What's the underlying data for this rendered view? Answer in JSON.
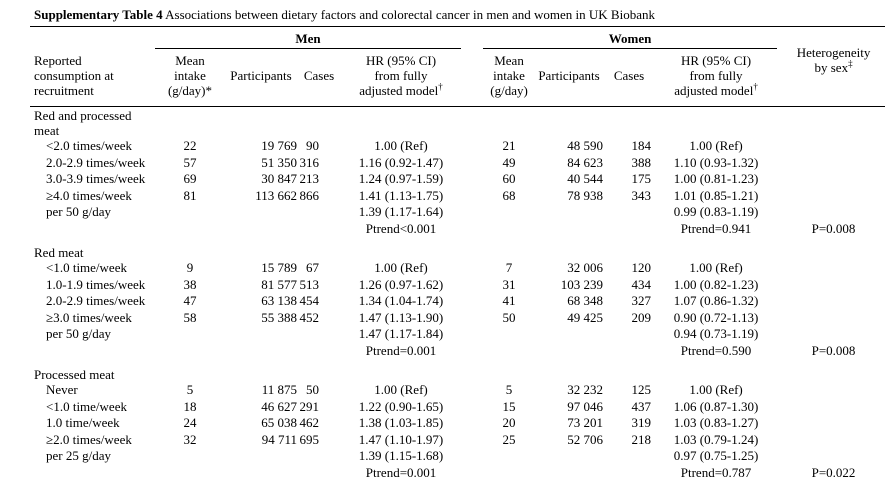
{
  "title": {
    "label": "Supplementary Table 4",
    "text": " Associations between dietary factors and colorectal cancer in men and women in UK Biobank"
  },
  "header": {
    "stub": "Reported\nconsumption at\nrecruitment",
    "men_group": "Men",
    "women_group": "Women",
    "men": {
      "mean": "Mean\nintake\n(g/day)*",
      "participants": "Participants",
      "cases": "Cases",
      "hr": "HR (95% CI)\nfrom fully\nadjusted model",
      "hr_sup": "†"
    },
    "women": {
      "mean": "Mean\nintake\n(g/day)",
      "participants": "Participants",
      "cases": "Cases",
      "hr": "HR (95% CI)\nfrom fully\nadjusted model",
      "hr_sup": "†"
    },
    "heterogeneity": {
      "label": "Heterogeneity\nby sex",
      "sup": "‡"
    }
  },
  "sections": [
    {
      "name": "Red and processed meat",
      "rows": [
        {
          "label": "<2.0 times/week",
          "men": {
            "mean": "22",
            "participants": "19 769",
            "cases": "90",
            "hr": "1.00 (Ref)"
          },
          "women": {
            "mean": "21",
            "participants": "48 590",
            "cases": "184",
            "hr": "1.00 (Ref)"
          }
        },
        {
          "label": "2.0-2.9 times/week",
          "men": {
            "mean": "57",
            "participants": "51 350",
            "cases": "316",
            "hr": "1.16 (0.92-1.47)"
          },
          "women": {
            "mean": "49",
            "participants": "84 623",
            "cases": "388",
            "hr": "1.10 (0.93-1.32)"
          }
        },
        {
          "label": "3.0-3.9 times/week",
          "men": {
            "mean": "69",
            "participants": "30 847",
            "cases": "213",
            "hr": "1.24 (0.97-1.59)"
          },
          "women": {
            "mean": "60",
            "participants": "40 544",
            "cases": "175",
            "hr": "1.00 (0.81-1.23)"
          }
        },
        {
          "label": "≥4.0 times/week",
          "men": {
            "mean": "81",
            "participants": "113 662",
            "cases": "866",
            "hr": "1.41 (1.13-1.75)"
          },
          "women": {
            "mean": "68",
            "participants": "78 938",
            "cases": "343",
            "hr": "1.01 (0.85-1.21)"
          }
        }
      ],
      "per_unit": {
        "label": "per 50 g/day",
        "men_hr": "1.39 (1.17-1.64)",
        "women_hr": "0.99 (0.83-1.19)"
      },
      "ptrend": {
        "men": "Ptrend<0.001",
        "women": "Ptrend=0.941",
        "heterogeneity": "P=0.008"
      }
    },
    {
      "name": "Red meat",
      "rows": [
        {
          "label": "<1.0 time/week",
          "men": {
            "mean": "9",
            "participants": "15 789",
            "cases": "67",
            "hr": "1.00 (Ref)"
          },
          "women": {
            "mean": "7",
            "participants": "32 006",
            "cases": "120",
            "hr": "1.00 (Ref)"
          }
        },
        {
          "label": "1.0-1.9 times/week",
          "men": {
            "mean": "38",
            "participants": "81 577",
            "cases": "513",
            "hr": "1.26 (0.97-1.62)"
          },
          "women": {
            "mean": "31",
            "participants": "103 239",
            "cases": "434",
            "hr": "1.00 (0.82-1.23)"
          }
        },
        {
          "label": "2.0-2.9 times/week",
          "men": {
            "mean": "47",
            "participants": "63 138",
            "cases": "454",
            "hr": "1.34 (1.04-1.74)"
          },
          "women": {
            "mean": "41",
            "participants": "68 348",
            "cases": "327",
            "hr": "1.07 (0.86-1.32)"
          }
        },
        {
          "label": "≥3.0 times/week",
          "men": {
            "mean": "58",
            "participants": "55 388",
            "cases": "452",
            "hr": "1.47 (1.13-1.90)"
          },
          "women": {
            "mean": "50",
            "participants": "49 425",
            "cases": "209",
            "hr": "0.90 (0.72-1.13)"
          }
        }
      ],
      "per_unit": {
        "label": "per 50 g/day",
        "men_hr": "1.47 (1.17-1.84)",
        "women_hr": "0.94 (0.73-1.19)"
      },
      "ptrend": {
        "men": "Ptrend=0.001",
        "women": "Ptrend=0.590",
        "heterogeneity": "P=0.008"
      }
    },
    {
      "name": "Processed meat",
      "rows": [
        {
          "label": "Never",
          "men": {
            "mean": "5",
            "participants": "11 875",
            "cases": "50",
            "hr": "1.00 (Ref)"
          },
          "women": {
            "mean": "5",
            "participants": "32 232",
            "cases": "125",
            "hr": "1.00 (Ref)"
          }
        },
        {
          "label": "<1.0 time/week",
          "men": {
            "mean": "18",
            "participants": "46 627",
            "cases": "291",
            "hr": "1.22 (0.90-1.65)"
          },
          "women": {
            "mean": "15",
            "participants": "97 046",
            "cases": "437",
            "hr": "1.06 (0.87-1.30)"
          }
        },
        {
          "label": "1.0 time/week",
          "men": {
            "mean": "24",
            "participants": "65 038",
            "cases": "462",
            "hr": "1.38 (1.03-1.85)"
          },
          "women": {
            "mean": "20",
            "participants": "73 201",
            "cases": "319",
            "hr": "1.03 (0.83-1.27)"
          }
        },
        {
          "label": "≥2.0 times/week",
          "men": {
            "mean": "32",
            "participants": "94 711",
            "cases": "695",
            "hr": "1.47 (1.10-1.97)"
          },
          "women": {
            "mean": "25",
            "participants": "52 706",
            "cases": "218",
            "hr": "1.03 (0.79-1.24)"
          }
        }
      ],
      "per_unit": {
        "label": "per 25 g/day",
        "men_hr": "1.39 (1.15-1.68)",
        "women_hr": "0.97 (0.75-1.25)"
      },
      "ptrend": {
        "men": "Ptrend=0.001",
        "women": "Ptrend=0.787",
        "heterogeneity": "P=0.022"
      }
    }
  ]
}
